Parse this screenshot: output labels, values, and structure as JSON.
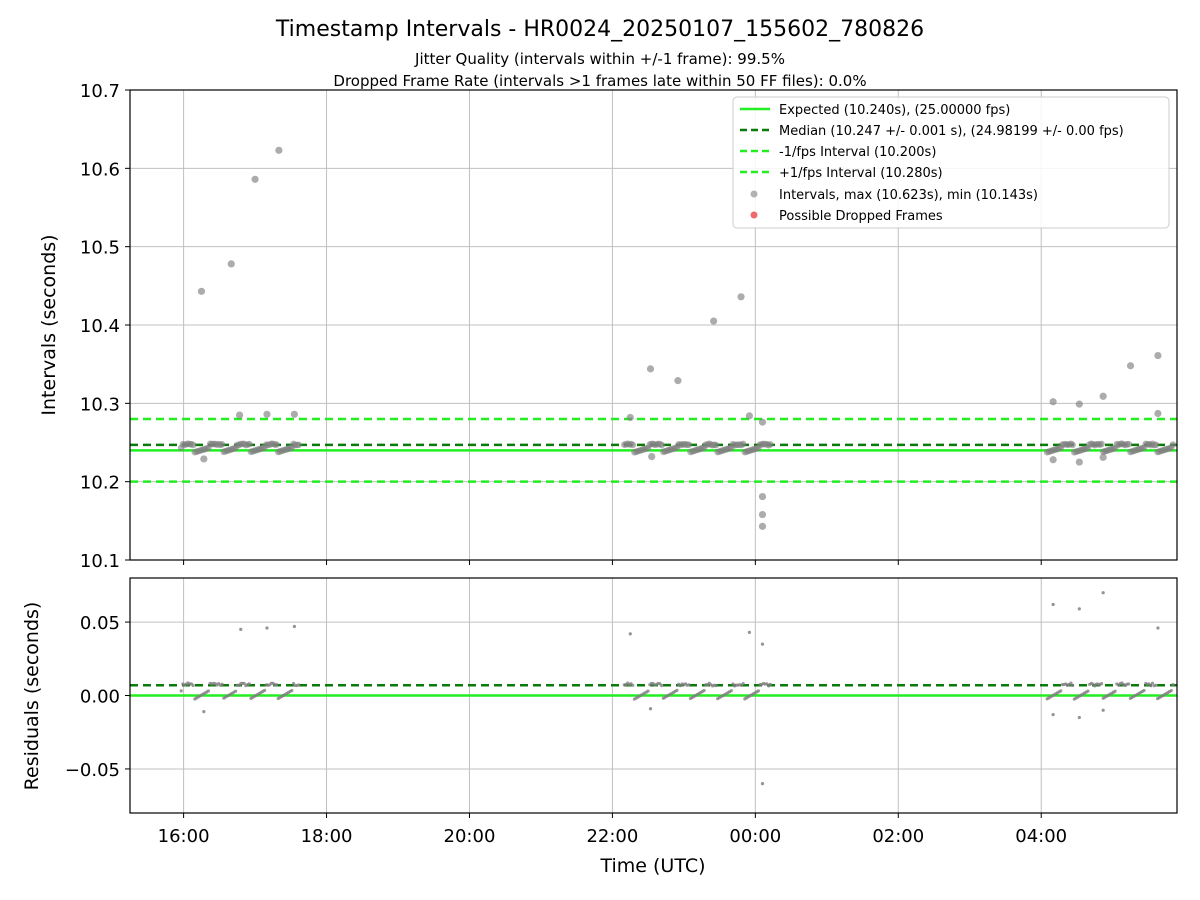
{
  "figure": {
    "title": "Timestamp Intervals - HR0024_20250107_155602_780826",
    "subtitle_1": "Jitter Quality (intervals within +/-1 frame): 99.5%",
    "subtitle_2": "Dropped Frame Rate (intervals >1 frames late within 50 FF files): 0.0%"
  },
  "colors": {
    "expected": "#22ee22",
    "median": "#0a7a0a",
    "interval_band": "#22ee22",
    "points": "#808080",
    "dropped": "#ee4444",
    "grid": "#c0c0c0"
  },
  "chart_data": [
    {
      "type": "scatter",
      "ylabel": "Intervals (seconds)",
      "xlabel": "",
      "ylim": [
        10.1,
        10.7
      ],
      "xlim_hours": [
        15.25,
        29.9
      ],
      "yticks": [
        "10.1",
        "10.2",
        "10.3",
        "10.4",
        "10.5",
        "10.6",
        "10.7"
      ],
      "grid": true,
      "legend_placement": "top-right",
      "reference_lines": [
        {
          "name": "Expected (10.240s), (25.00000 fps)",
          "value": 10.24,
          "style": "solid"
        },
        {
          "name": "Median (10.247 +/- 0.001 s), (24.98199 +/- 0.00 fps)",
          "value": 10.247,
          "style": "dashed"
        },
        {
          "name": "-1/fps Interval (10.200s)",
          "value": 10.2,
          "style": "dashed"
        },
        {
          "name": "+1/fps Interval (10.280s)",
          "value": 10.28,
          "style": "dashed"
        }
      ],
      "series": [
        {
          "name": "Intervals, max (10.623s), min (10.143s)",
          "segments": [
            {
              "start": "15:58",
              "end": "17:38"
            },
            {
              "start": "22:10",
              "end": "00:14"
            },
            {
              "start": "04:05",
              "end": "05:52"
            }
          ],
          "outliers": [
            {
              "x": "16:15",
              "y": 10.443
            },
            {
              "x": "16:40",
              "y": 10.478
            },
            {
              "x": "17:00",
              "y": 10.586
            },
            {
              "x": "17:20",
              "y": 10.623
            },
            {
              "x": "16:47",
              "y": 10.285
            },
            {
              "x": "17:10",
              "y": 10.286
            },
            {
              "x": "17:33",
              "y": 10.286
            },
            {
              "x": "16:17",
              "y": 10.229
            },
            {
              "x": "22:15",
              "y": 10.282
            },
            {
              "x": "22:32",
              "y": 10.344
            },
            {
              "x": "22:55",
              "y": 10.329
            },
            {
              "x": "23:25",
              "y": 10.405
            },
            {
              "x": "23:48",
              "y": 10.436
            },
            {
              "x": "23:55",
              "y": 10.284
            },
            {
              "x": "22:33",
              "y": 10.232
            },
            {
              "x": "00:06",
              "y": 10.276
            },
            {
              "x": "00:06",
              "y": 10.181
            },
            {
              "x": "00:06",
              "y": 10.158
            },
            {
              "x": "00:06",
              "y": 10.143
            },
            {
              "x": "04:10",
              "y": 10.302
            },
            {
              "x": "04:32",
              "y": 10.299
            },
            {
              "x": "04:52",
              "y": 10.309
            },
            {
              "x": "05:15",
              "y": 10.348
            },
            {
              "x": "05:38",
              "y": 10.361
            },
            {
              "x": "05:38",
              "y": 10.287
            },
            {
              "x": "04:10",
              "y": 10.228
            },
            {
              "x": "04:32",
              "y": 10.225
            },
            {
              "x": "04:52",
              "y": 10.231
            }
          ]
        },
        {
          "name": "Possible Dropped Frames",
          "points": []
        }
      ],
      "legend": [
        "Expected (10.240s), (25.00000 fps)",
        "Median (10.247 +/- 0.001 s), (24.98199 +/- 0.00 fps)",
        "-1/fps Interval (10.200s)",
        "+1/fps Interval (10.280s)",
        "Intervals, max (10.623s), min (10.143s)",
        "Possible Dropped Frames"
      ]
    },
    {
      "type": "scatter",
      "ylabel": "Residuals (seconds)",
      "xlabel": "Time (UTC)",
      "ylim": [
        -0.08,
        0.08
      ],
      "xlim_hours": [
        15.25,
        29.9
      ],
      "yticks": [
        "−0.05",
        "0.00",
        "0.05"
      ],
      "xticks": [
        "16:00",
        "18:00",
        "20:00",
        "22:00",
        "00:00",
        "02:00",
        "04:00"
      ],
      "grid": true,
      "reference_lines": [
        {
          "name": "zero",
          "value": 0.0,
          "style": "solid"
        },
        {
          "name": "median residual",
          "value": 0.007,
          "style": "dashed"
        }
      ],
      "outliers": [
        {
          "x": "16:48",
          "y": 0.045
        },
        {
          "x": "17:10",
          "y": 0.046
        },
        {
          "x": "17:33",
          "y": 0.047
        },
        {
          "x": "16:17",
          "y": -0.011
        },
        {
          "x": "22:15",
          "y": 0.042
        },
        {
          "x": "23:55",
          "y": 0.043
        },
        {
          "x": "00:06",
          "y": 0.035
        },
        {
          "x": "00:06",
          "y": -0.06
        },
        {
          "x": "22:32",
          "y": -0.009
        },
        {
          "x": "04:10",
          "y": 0.062
        },
        {
          "x": "04:32",
          "y": 0.059
        },
        {
          "x": "04:52",
          "y": 0.07
        },
        {
          "x": "05:38",
          "y": 0.046
        },
        {
          "x": "04:10",
          "y": -0.013
        },
        {
          "x": "04:32",
          "y": -0.015
        },
        {
          "x": "04:52",
          "y": -0.01
        }
      ]
    }
  ]
}
